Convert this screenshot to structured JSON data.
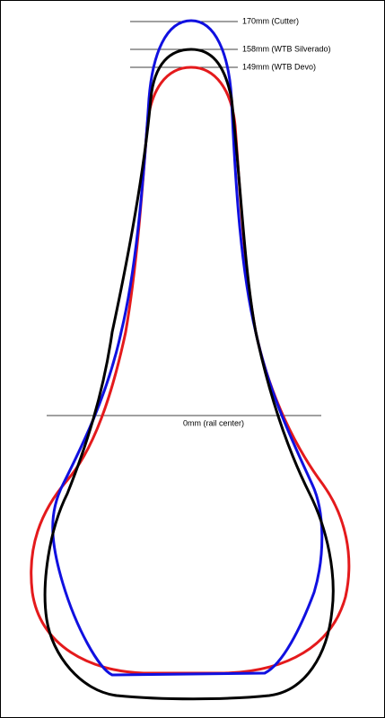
{
  "annotations": [
    {
      "label": "170mm (Cutter)"
    },
    {
      "label": "158mm (WTB Silverado)"
    },
    {
      "label": "149mm (WTB Devo)"
    },
    {
      "label": "0mm (rail center)"
    }
  ]
}
